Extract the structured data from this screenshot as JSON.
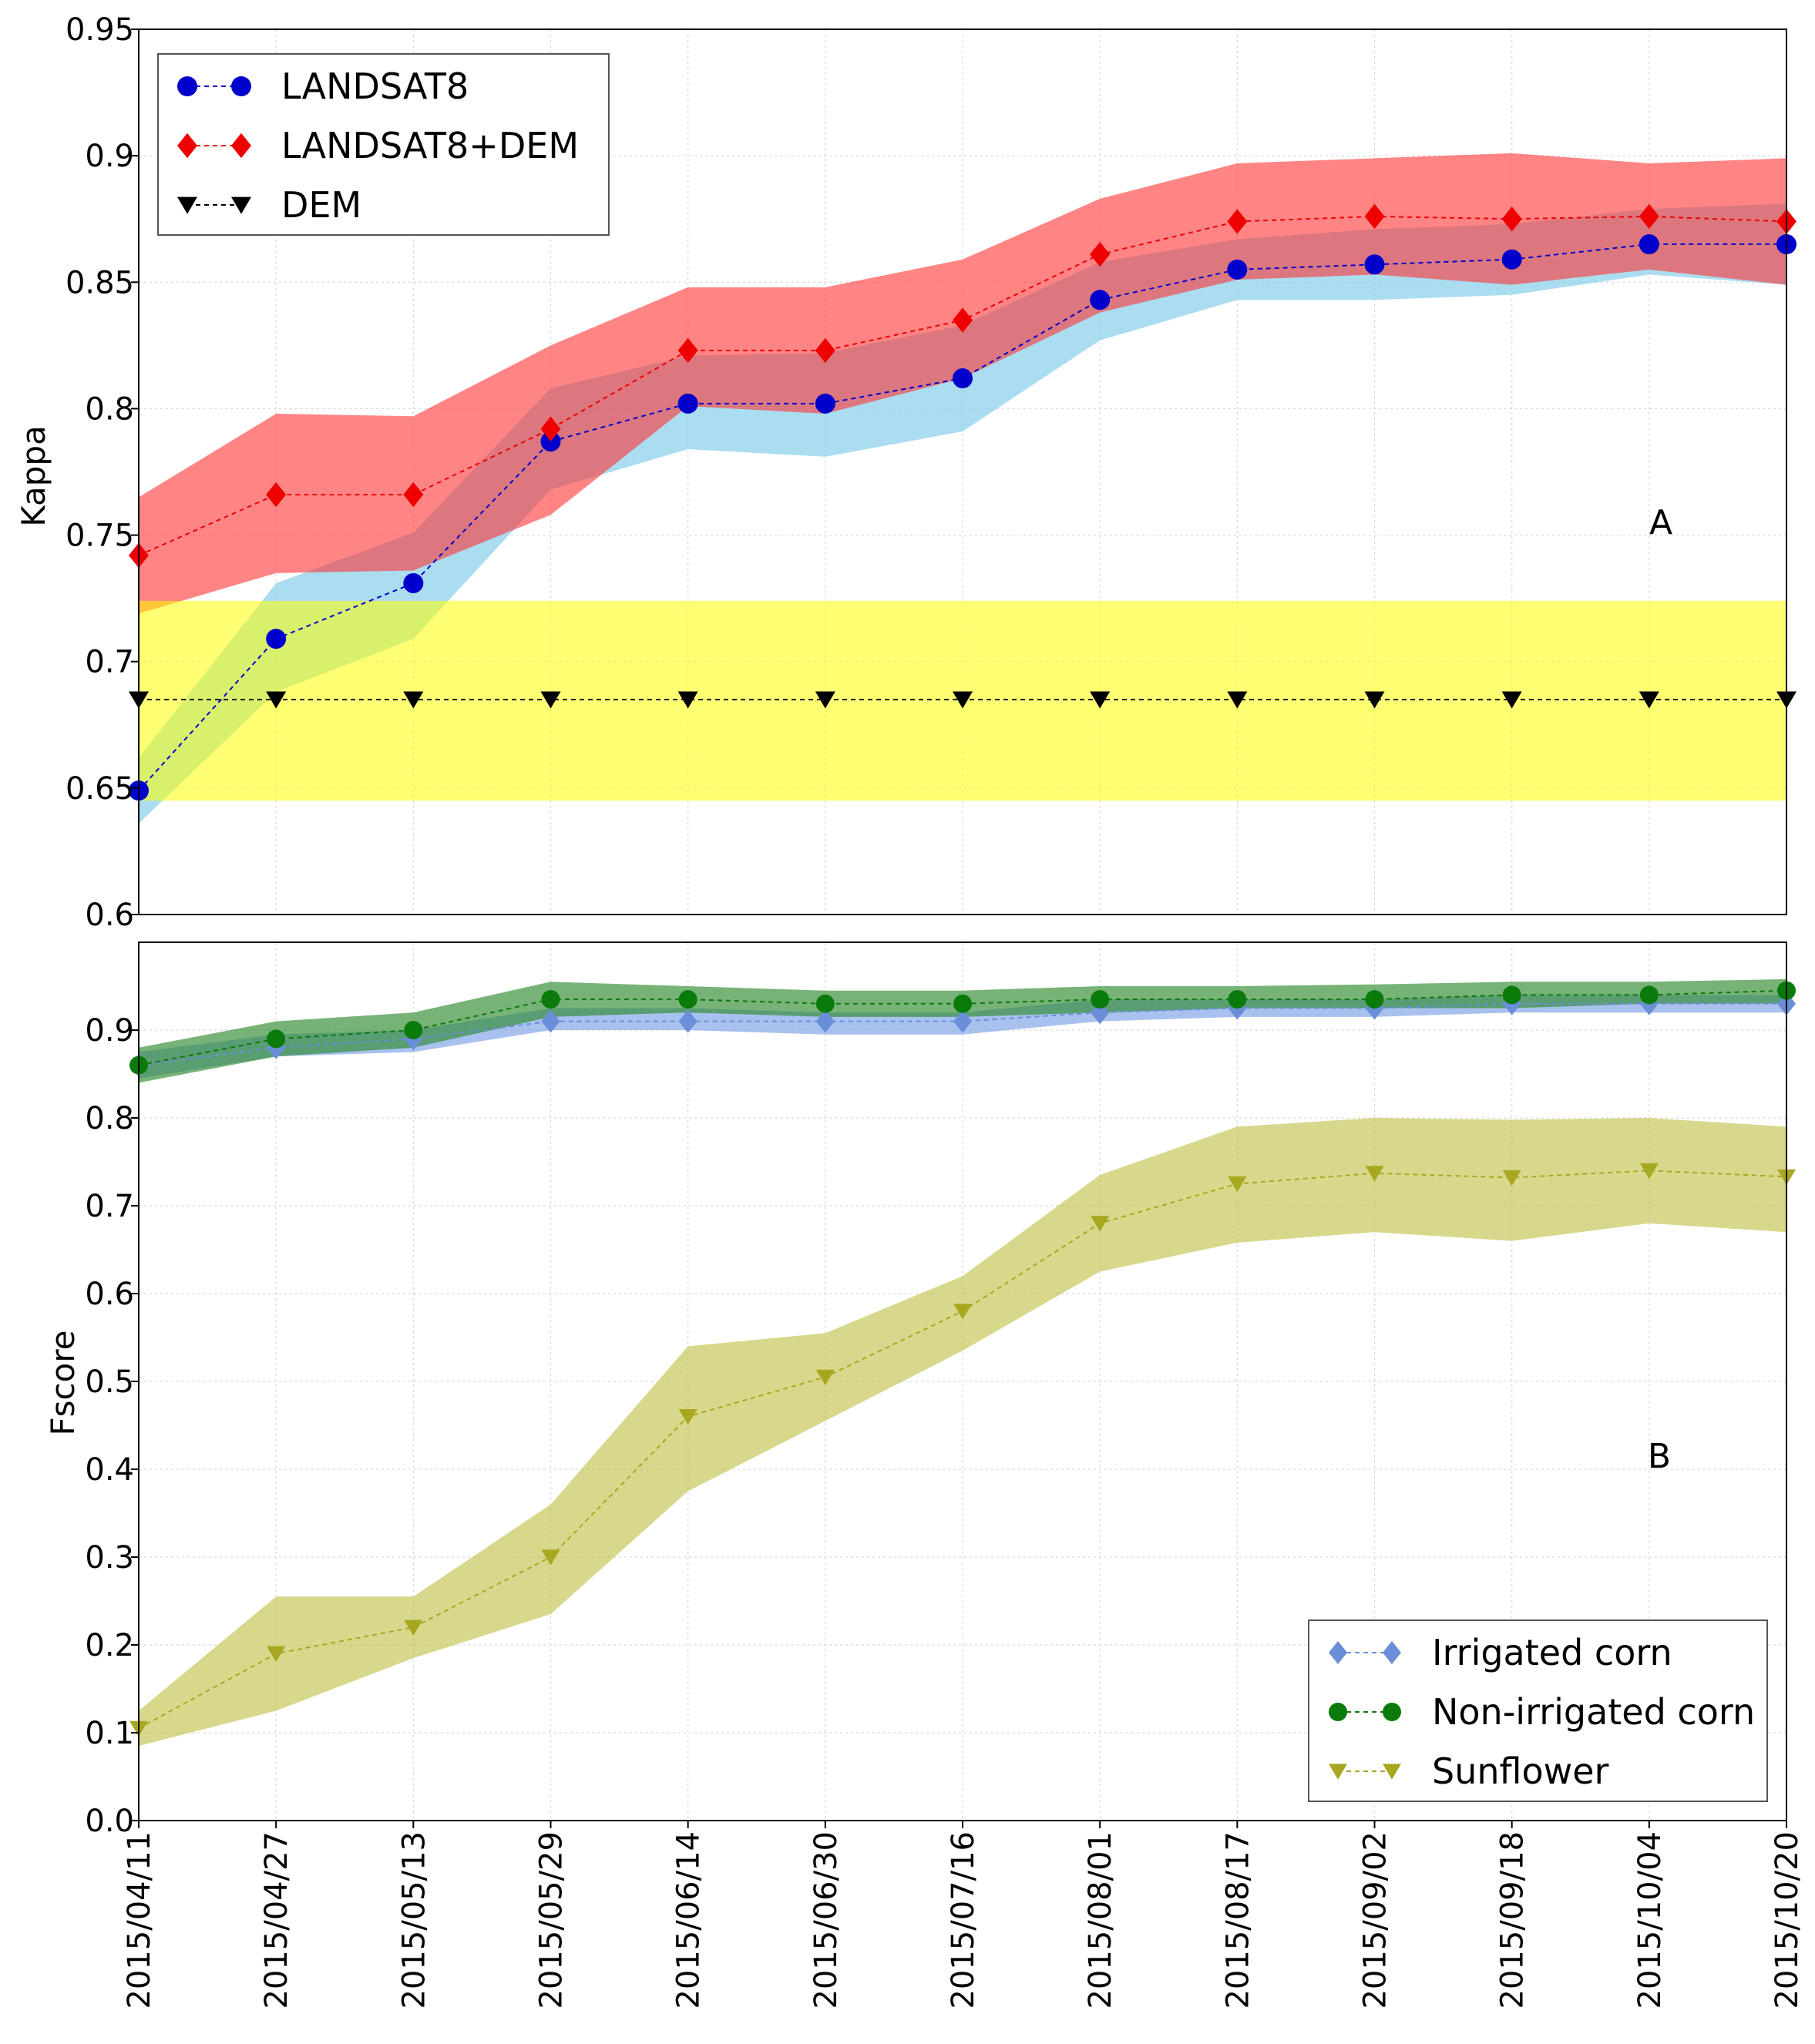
{
  "chart_data": [
    {
      "id": "A",
      "type": "line",
      "panel_label": "A",
      "ylabel": "Kappa",
      "ylim": [
        0.6,
        0.95
      ],
      "yticks": [
        0.6,
        0.65,
        0.7,
        0.75,
        0.8,
        0.85,
        0.9,
        0.95
      ],
      "ytick_labels": [
        "0.6",
        "0.65",
        "0.7",
        "0.75",
        "0.8",
        "0.85",
        "0.9",
        "0.95"
      ],
      "grid": true,
      "legend_position": "top-left",
      "x": [
        "2015/04/11",
        "2015/04/27",
        "2015/05/13",
        "2015/05/29",
        "2015/06/14",
        "2015/06/30",
        "2015/07/16",
        "2015/08/01",
        "2015/08/17",
        "2015/09/02",
        "2015/09/18",
        "2015/10/04",
        "2015/10/20"
      ],
      "series": [
        {
          "name": "LANDSAT8",
          "color": "#0000cc",
          "band_color": "#87ceeb",
          "band_opacity": 0.7,
          "marker": "circle",
          "values": [
            0.649,
            0.709,
            0.731,
            0.787,
            0.802,
            0.802,
            0.812,
            0.843,
            0.855,
            0.857,
            0.859,
            0.865,
            0.865
          ],
          "lower": [
            0.636,
            0.688,
            0.709,
            0.768,
            0.784,
            0.781,
            0.791,
            0.827,
            0.843,
            0.843,
            0.845,
            0.853,
            0.849
          ],
          "upper": [
            0.662,
            0.731,
            0.751,
            0.808,
            0.821,
            0.822,
            0.833,
            0.858,
            0.867,
            0.871,
            0.873,
            0.879,
            0.881
          ]
        },
        {
          "name": "LANDSAT8+DEM",
          "color": "#ee0000",
          "band_color": "#ff3333",
          "band_opacity": 0.6,
          "marker": "diamond",
          "values": [
            0.742,
            0.766,
            0.766,
            0.792,
            0.823,
            0.823,
            0.835,
            0.861,
            0.874,
            0.876,
            0.875,
            0.876,
            0.874
          ],
          "lower": [
            0.719,
            0.735,
            0.736,
            0.758,
            0.801,
            0.798,
            0.812,
            0.838,
            0.851,
            0.853,
            0.849,
            0.855,
            0.849
          ],
          "upper": [
            0.765,
            0.798,
            0.797,
            0.825,
            0.848,
            0.848,
            0.859,
            0.883,
            0.897,
            0.899,
            0.901,
            0.897,
            0.899
          ]
        },
        {
          "name": "DEM",
          "color": "#000000",
          "band_color": "#ffff00",
          "band_opacity": 0.55,
          "marker": "triangle-down",
          "values": [
            0.685,
            0.685,
            0.685,
            0.685,
            0.685,
            0.685,
            0.685,
            0.685,
            0.685,
            0.685,
            0.685,
            0.685,
            0.685
          ],
          "lower": [
            0.645,
            0.645,
            0.645,
            0.645,
            0.645,
            0.645,
            0.645,
            0.645,
            0.645,
            0.645,
            0.645,
            0.645,
            0.645
          ],
          "upper": [
            0.724,
            0.724,
            0.724,
            0.724,
            0.724,
            0.724,
            0.724,
            0.724,
            0.724,
            0.724,
            0.724,
            0.724,
            0.724
          ]
        }
      ]
    },
    {
      "id": "B",
      "type": "line",
      "panel_label": "B",
      "ylabel": "Fscore",
      "ylim": [
        0.0,
        1.0
      ],
      "yticks": [
        0.0,
        0.1,
        0.2,
        0.3,
        0.4,
        0.5,
        0.6,
        0.7,
        0.8,
        0.9
      ],
      "ytick_labels": [
        "0.0",
        "0.1",
        "0.2",
        "0.3",
        "0.4",
        "0.5",
        "0.6",
        "0.7",
        "0.8",
        "0.9"
      ],
      "grid": true,
      "legend_position": "bottom-right",
      "x": [
        "2015/04/11",
        "2015/04/27",
        "2015/05/13",
        "2015/05/29",
        "2015/06/14",
        "2015/06/30",
        "2015/07/16",
        "2015/08/01",
        "2015/08/17",
        "2015/09/02",
        "2015/09/18",
        "2015/10/04",
        "2015/10/20"
      ],
      "series": [
        {
          "name": "Irrigated corn",
          "color": "#6a8fd8",
          "band_color": "#7b9fe6",
          "band_opacity": 0.65,
          "marker": "diamond",
          "values": [
            0.86,
            0.88,
            0.89,
            0.91,
            0.91,
            0.91,
            0.91,
            0.92,
            0.925,
            0.925,
            0.93,
            0.93,
            0.93
          ],
          "lower": [
            0.845,
            0.87,
            0.875,
            0.9,
            0.9,
            0.895,
            0.895,
            0.91,
            0.915,
            0.915,
            0.92,
            0.92,
            0.92
          ],
          "upper": [
            0.875,
            0.895,
            0.9,
            0.925,
            0.925,
            0.92,
            0.92,
            0.935,
            0.935,
            0.935,
            0.94,
            0.94,
            0.94
          ]
        },
        {
          "name": "Non-irrigated corn",
          "color": "#0a7a0a",
          "band_color": "#2e8b2e",
          "band_opacity": 0.65,
          "marker": "circle",
          "values": [
            0.86,
            0.89,
            0.9,
            0.935,
            0.935,
            0.93,
            0.93,
            0.935,
            0.935,
            0.935,
            0.94,
            0.94,
            0.945
          ],
          "lower": [
            0.84,
            0.87,
            0.88,
            0.915,
            0.92,
            0.915,
            0.915,
            0.92,
            0.925,
            0.925,
            0.925,
            0.93,
            0.93
          ],
          "upper": [
            0.88,
            0.91,
            0.92,
            0.955,
            0.95,
            0.945,
            0.945,
            0.95,
            0.95,
            0.952,
            0.955,
            0.955,
            0.958
          ]
        },
        {
          "name": "Sunflower",
          "color": "#a8a820",
          "band_color": "#b8b830",
          "band_opacity": 0.55,
          "marker": "triangle-down",
          "values": [
            0.105,
            0.19,
            0.22,
            0.3,
            0.46,
            0.505,
            0.58,
            0.68,
            0.725,
            0.737,
            0.732,
            0.74,
            0.733
          ],
          "lower": [
            0.085,
            0.125,
            0.185,
            0.235,
            0.375,
            0.455,
            0.535,
            0.625,
            0.658,
            0.67,
            0.66,
            0.68,
            0.67
          ],
          "upper": [
            0.125,
            0.255,
            0.255,
            0.36,
            0.54,
            0.555,
            0.62,
            0.735,
            0.79,
            0.8,
            0.798,
            0.8,
            0.79
          ]
        }
      ]
    }
  ]
}
